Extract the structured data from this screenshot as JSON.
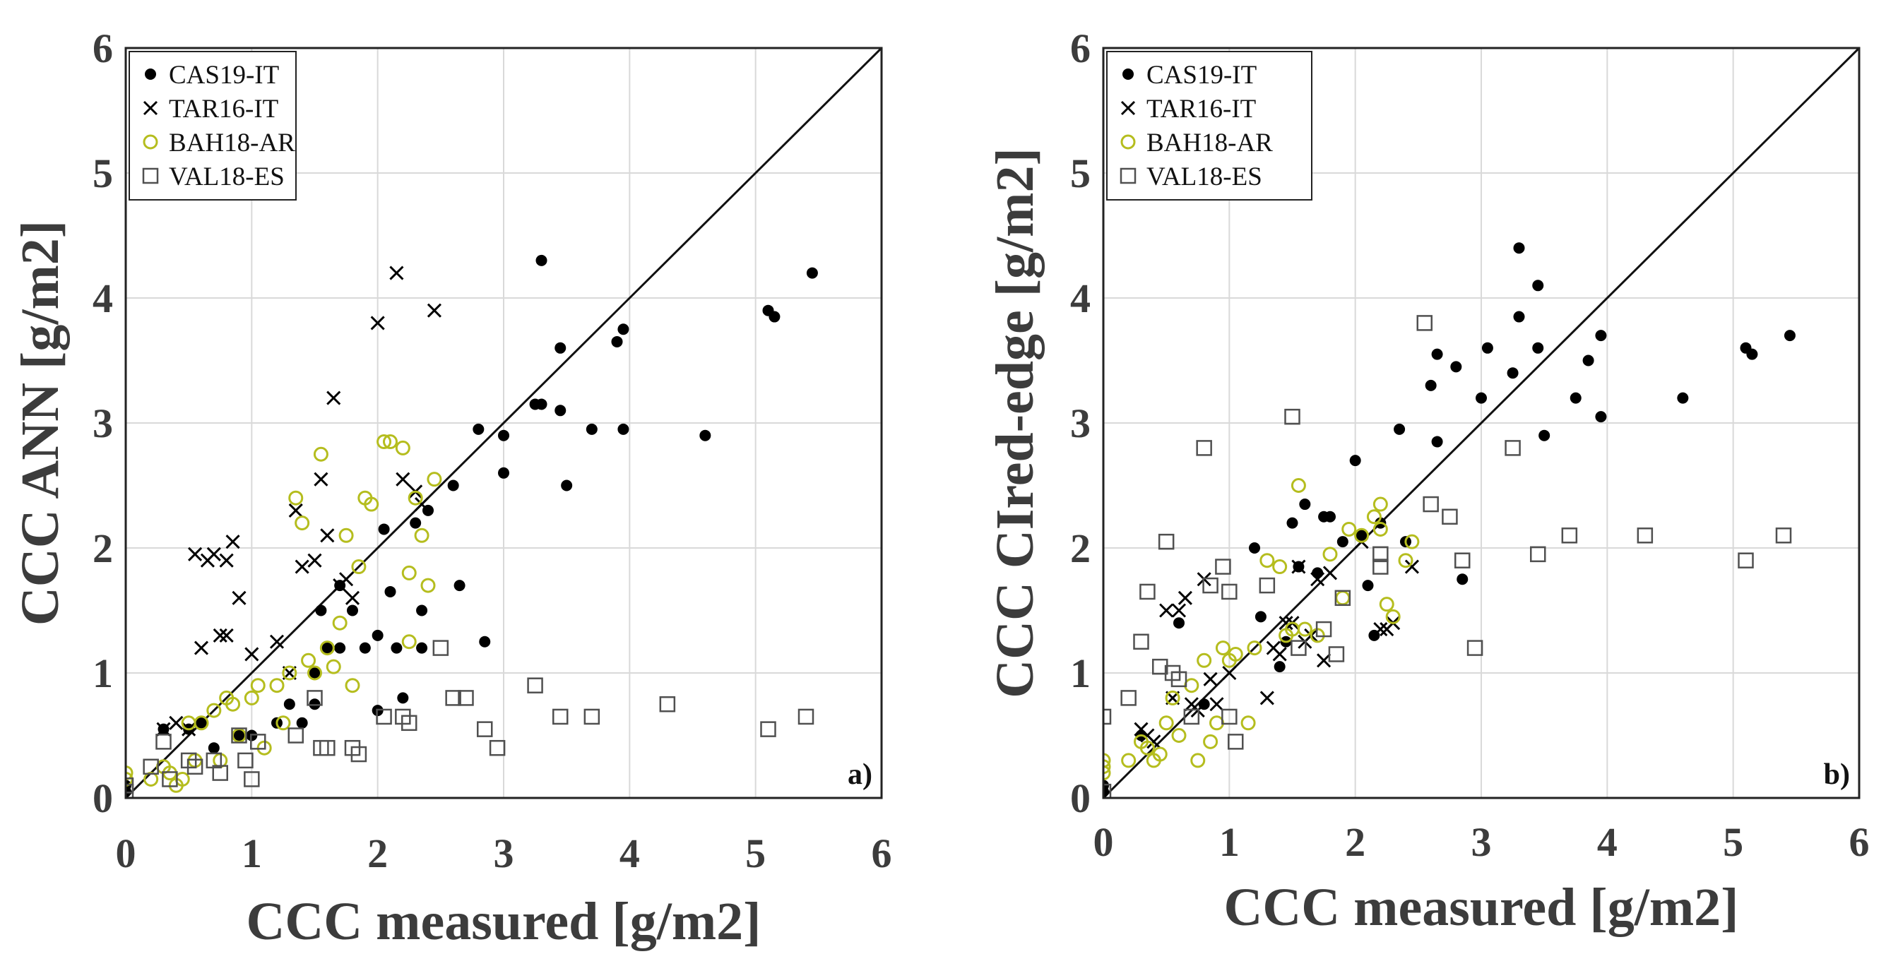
{
  "chart_data": [
    {
      "type": "scatter",
      "panel_label": "a)",
      "xlabel": "CCC measured [g/m2]",
      "ylabel": "CCC ANN [g/m2]",
      "xlim": [
        0,
        6
      ],
      "ylim": [
        0,
        6
      ],
      "xticks": [
        "0",
        "1",
        "2",
        "3",
        "4",
        "5",
        "6"
      ],
      "yticks": [
        "0",
        "1",
        "2",
        "3",
        "4",
        "5",
        "6"
      ],
      "grid": true,
      "legend_position": "top-left",
      "one_to_one_line": true,
      "series": [
        {
          "name": "CAS19-IT",
          "marker": "dot",
          "color": "#000000",
          "x": [
            0.0,
            0.0,
            0.3,
            0.5,
            0.6,
            0.7,
            0.9,
            1.0,
            1.2,
            1.3,
            1.4,
            1.5,
            1.5,
            1.55,
            1.6,
            1.7,
            1.7,
            1.8,
            1.9,
            2.0,
            2.0,
            2.05,
            2.1,
            2.15,
            2.2,
            2.3,
            2.35,
            2.35,
            2.4,
            2.6,
            2.65,
            2.8,
            2.85,
            3.0,
            3.0,
            3.25,
            3.3,
            3.3,
            3.45,
            3.45,
            3.5,
            3.7,
            3.9,
            3.95,
            3.95,
            4.6,
            5.1,
            5.15,
            5.45
          ],
          "y": [
            0.05,
            0.1,
            0.55,
            0.55,
            0.6,
            0.4,
            0.5,
            0.5,
            0.6,
            0.75,
            0.6,
            0.75,
            1.0,
            1.5,
            1.2,
            1.2,
            1.7,
            1.5,
            1.2,
            0.7,
            1.3,
            2.15,
            1.65,
            1.2,
            0.8,
            2.2,
            1.2,
            1.5,
            2.3,
            2.5,
            1.7,
            2.95,
            1.25,
            2.6,
            2.9,
            3.15,
            3.15,
            4.3,
            3.1,
            3.6,
            2.5,
            2.95,
            3.65,
            2.95,
            3.75,
            2.9,
            3.9,
            3.85,
            4.2
          ]
        },
        {
          "name": "TAR16-IT",
          "marker": "x",
          "color": "#000000",
          "x": [
            0.3,
            0.4,
            0.5,
            0.55,
            0.6,
            0.65,
            0.7,
            0.75,
            0.8,
            0.8,
            0.85,
            0.9,
            1.0,
            1.2,
            1.3,
            1.35,
            1.4,
            1.5,
            1.55,
            1.6,
            1.65,
            1.7,
            1.75,
            1.8,
            2.0,
            2.15,
            2.2,
            2.3,
            2.35,
            2.45
          ],
          "y": [
            0.55,
            0.6,
            0.55,
            1.95,
            1.2,
            1.9,
            1.95,
            1.3,
            1.3,
            1.9,
            2.05,
            1.6,
            1.15,
            1.25,
            1.0,
            2.3,
            1.85,
            1.9,
            2.55,
            2.1,
            3.2,
            1.7,
            1.75,
            1.6,
            3.8,
            4.2,
            2.55,
            2.45,
            2.35,
            3.9
          ]
        },
        {
          "name": "BAH18-AR",
          "marker": "circle",
          "color": "#b5bd1e",
          "x": [
            0.0,
            0.0,
            0.2,
            0.3,
            0.35,
            0.4,
            0.45,
            0.5,
            0.55,
            0.6,
            0.7,
            0.75,
            0.8,
            0.85,
            0.9,
            1.0,
            1.05,
            1.1,
            1.2,
            1.25,
            1.3,
            1.35,
            1.4,
            1.45,
            1.5,
            1.55,
            1.6,
            1.65,
            1.7,
            1.75,
            1.8,
            1.85,
            1.9,
            1.95,
            2.05,
            2.1,
            2.2,
            2.25,
            2.25,
            2.3,
            2.35,
            2.4,
            2.45
          ],
          "y": [
            0.2,
            0.15,
            0.15,
            0.25,
            0.2,
            0.1,
            0.15,
            0.6,
            0.3,
            0.6,
            0.7,
            0.3,
            0.8,
            0.75,
            0.5,
            0.8,
            0.9,
            0.4,
            0.9,
            0.6,
            1.0,
            2.4,
            2.2,
            1.1,
            1.0,
            2.75,
            1.2,
            1.05,
            1.4,
            2.1,
            0.9,
            1.85,
            2.4,
            2.35,
            2.85,
            2.85,
            2.8,
            1.25,
            1.8,
            2.4,
            2.1,
            1.7,
            2.55
          ]
        },
        {
          "name": "VAL18-ES",
          "marker": "square",
          "color": "#505050",
          "x": [
            0.0,
            0.0,
            0.2,
            0.3,
            0.35,
            0.5,
            0.55,
            0.7,
            0.75,
            0.9,
            0.95,
            1.0,
            1.05,
            1.35,
            1.5,
            1.55,
            1.6,
            1.8,
            1.85,
            2.05,
            2.2,
            2.25,
            2.5,
            2.6,
            2.7,
            2.85,
            2.95,
            3.25,
            3.45,
            3.7,
            4.3,
            5.1,
            5.4
          ],
          "y": [
            0.05,
            0.1,
            0.25,
            0.45,
            0.15,
            0.3,
            0.25,
            0.3,
            0.2,
            0.5,
            0.3,
            0.15,
            0.45,
            0.5,
            0.8,
            0.4,
            0.4,
            0.4,
            0.35,
            0.65,
            0.65,
            0.6,
            1.2,
            0.8,
            0.8,
            0.55,
            0.4,
            0.9,
            0.65,
            0.65,
            0.75,
            0.55,
            0.65
          ]
        }
      ]
    },
    {
      "type": "scatter",
      "panel_label": "b)",
      "xlabel": "CCC measured [g/m2]",
      "ylabel": "CCC CIred-edge [g/m2]",
      "xlim": [
        0,
        6
      ],
      "ylim": [
        0,
        6
      ],
      "xticks": [
        "0",
        "1",
        "2",
        "3",
        "4",
        "5",
        "6"
      ],
      "yticks": [
        "0",
        "1",
        "2",
        "3",
        "4",
        "5",
        "6"
      ],
      "grid": true,
      "legend_position": "top-left",
      "one_to_one_line": true,
      "series": [
        {
          "name": "CAS19-IT",
          "marker": "dot",
          "color": "#000000",
          "x": [
            0.0,
            0.0,
            0.3,
            0.6,
            0.8,
            1.2,
            1.25,
            1.4,
            1.45,
            1.5,
            1.55,
            1.6,
            1.7,
            1.75,
            1.8,
            1.9,
            2.0,
            2.05,
            2.1,
            2.15,
            2.2,
            2.35,
            2.4,
            2.6,
            2.65,
            2.65,
            2.8,
            2.85,
            3.0,
            3.05,
            3.25,
            3.3,
            3.3,
            3.45,
            3.45,
            3.5,
            3.75,
            3.85,
            3.95,
            3.95,
            4.6,
            5.1,
            5.15,
            5.45
          ],
          "y": [
            0.05,
            0.1,
            0.5,
            1.4,
            0.75,
            2.0,
            1.45,
            1.05,
            1.25,
            2.2,
            1.85,
            2.35,
            1.8,
            2.25,
            2.25,
            2.05,
            2.7,
            2.1,
            1.7,
            1.3,
            2.2,
            2.95,
            2.05,
            3.3,
            3.55,
            2.85,
            3.45,
            1.75,
            3.2,
            3.6,
            3.4,
            3.85,
            4.4,
            3.6,
            4.1,
            2.9,
            3.2,
            3.5,
            3.05,
            3.7,
            3.2,
            3.6,
            3.55,
            3.7
          ]
        },
        {
          "name": "TAR16-IT",
          "marker": "x",
          "color": "#000000",
          "x": [
            0.3,
            0.35,
            0.4,
            0.5,
            0.55,
            0.6,
            0.65,
            0.7,
            0.75,
            0.8,
            0.85,
            0.9,
            1.0,
            1.3,
            1.35,
            1.4,
            1.45,
            1.5,
            1.55,
            1.6,
            1.65,
            1.7,
            1.75,
            1.8,
            2.05,
            2.2,
            2.25,
            2.3,
            2.45
          ],
          "y": [
            0.55,
            0.5,
            0.45,
            1.5,
            0.8,
            1.5,
            1.6,
            0.75,
            0.7,
            1.75,
            0.95,
            0.75,
            1.0,
            0.8,
            1.2,
            1.15,
            1.4,
            1.4,
            1.85,
            1.25,
            1.3,
            1.75,
            1.1,
            1.8,
            2.05,
            1.35,
            1.35,
            1.4,
            1.85
          ]
        },
        {
          "name": "BAH18-AR",
          "marker": "circle",
          "color": "#b5bd1e",
          "x": [
            0.0,
            0.0,
            0.0,
            0.2,
            0.3,
            0.35,
            0.4,
            0.45,
            0.5,
            0.55,
            0.6,
            0.7,
            0.75,
            0.8,
            0.85,
            0.9,
            0.95,
            1.0,
            1.05,
            1.15,
            1.2,
            1.3,
            1.4,
            1.45,
            1.5,
            1.55,
            1.6,
            1.7,
            1.8,
            1.9,
            1.95,
            2.05,
            2.15,
            2.2,
            2.2,
            2.25,
            2.3,
            2.4,
            2.45
          ],
          "y": [
            0.2,
            0.25,
            0.3,
            0.3,
            0.45,
            0.4,
            0.3,
            0.35,
            0.6,
            0.8,
            0.5,
            0.9,
            0.3,
            1.1,
            0.45,
            0.6,
            1.2,
            1.1,
            1.15,
            0.6,
            1.2,
            1.9,
            1.85,
            1.3,
            1.35,
            2.5,
            1.35,
            1.3,
            1.95,
            1.6,
            2.15,
            2.1,
            2.25,
            2.35,
            2.15,
            1.55,
            1.45,
            1.9,
            2.05
          ]
        },
        {
          "name": "VAL18-ES",
          "marker": "square",
          "color": "#505050",
          "x": [
            0.0,
            0.0,
            0.2,
            0.3,
            0.35,
            0.45,
            0.5,
            0.55,
            0.6,
            0.7,
            0.8,
            0.85,
            0.95,
            1.0,
            1.0,
            1.05,
            1.3,
            1.5,
            1.55,
            1.75,
            1.85,
            1.9,
            2.2,
            2.2,
            2.55,
            2.6,
            2.75,
            2.85,
            2.95,
            3.25,
            3.45,
            3.7,
            4.3,
            5.1,
            5.4
          ],
          "y": [
            0.05,
            0.65,
            0.8,
            1.25,
            1.65,
            1.05,
            2.05,
            1.0,
            0.95,
            0.65,
            2.8,
            1.7,
            1.85,
            1.65,
            0.65,
            0.45,
            1.7,
            3.05,
            1.2,
            1.35,
            1.15,
            1.6,
            1.95,
            1.85,
            3.8,
            2.35,
            2.25,
            1.9,
            1.2,
            2.8,
            1.95,
            2.1,
            2.1,
            1.9,
            2.1
          ]
        }
      ]
    }
  ]
}
